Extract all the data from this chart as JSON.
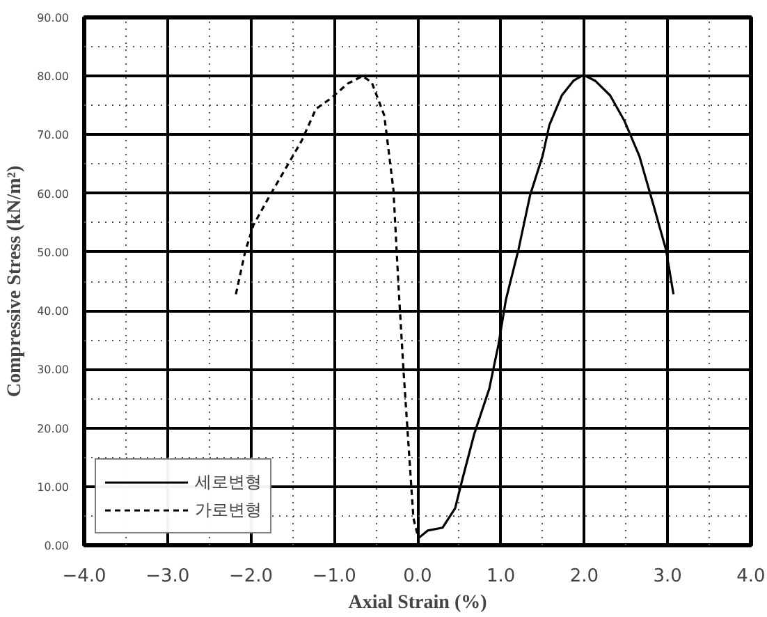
{
  "chart_data": {
    "type": "line",
    "xlabel": "Axial Strain (%)",
    "ylabel": "Compressive Stress (kN/m²)",
    "xlim": [
      -4,
      4
    ],
    "ylim": [
      0,
      90
    ],
    "xticks": [
      {
        "value": -4,
        "label": "−4.0"
      },
      {
        "value": -3,
        "label": "−3.0"
      },
      {
        "value": -2,
        "label": "−2.0"
      },
      {
        "value": -1,
        "label": "−1.0"
      },
      {
        "value": 0,
        "label": "0.0"
      },
      {
        "value": 1,
        "label": "1.0"
      },
      {
        "value": 2,
        "label": "2.0"
      },
      {
        "value": 3,
        "label": "3.0"
      },
      {
        "value": 4,
        "label": "4.0"
      }
    ],
    "yticks": [
      {
        "value": 0,
        "label": "0.00"
      },
      {
        "value": 10,
        "label": "10.00"
      },
      {
        "value": 20,
        "label": "20.00"
      },
      {
        "value": 30,
        "label": "30.00"
      },
      {
        "value": 40,
        "label": "40.00"
      },
      {
        "value": 50,
        "label": "50.00"
      },
      {
        "value": 60,
        "label": "60.00"
      },
      {
        "value": 70,
        "label": "70.00"
      },
      {
        "value": 80,
        "label": "80.00"
      },
      {
        "value": 90,
        "label": "90.00"
      }
    ],
    "grid": true,
    "legend": "bottom left",
    "marker": "none",
    "series": [
      {
        "name": "세로변형",
        "color": "#000000",
        "line_style": "solid",
        "x": [
          0.01,
          0.12,
          0.3,
          0.45,
          0.54,
          0.68,
          0.86,
          0.97,
          1.06,
          1.21,
          1.35,
          1.5,
          1.58,
          1.73,
          1.87,
          1.99,
          2.13,
          2.31,
          2.48,
          2.66,
          2.83,
          2.98,
          3.07
        ],
        "values": [
          1.2,
          2.5,
          3.0,
          6.3,
          11.4,
          19.0,
          26.7,
          34.2,
          41.9,
          50.4,
          59.7,
          66.4,
          71.6,
          76.7,
          79.2,
          80.2,
          79.2,
          76.7,
          72.4,
          66.4,
          58.0,
          50.4,
          42.8
        ]
      },
      {
        "name": "가로변형",
        "color": "#000000",
        "line_style": "dashed",
        "x": [
          -2.18,
          -2.07,
          -1.97,
          -1.77,
          -1.54,
          -1.39,
          -1.22,
          -1.04,
          -0.84,
          -0.66,
          -0.55,
          -0.4,
          -0.29,
          -0.23,
          -0.17,
          -0.11,
          -0.05,
          0.01
        ],
        "values": [
          42.8,
          50.0,
          54.6,
          59.7,
          65.3,
          69.0,
          74.4,
          76.2,
          78.7,
          80.0,
          78.9,
          73.3,
          60.6,
          44.4,
          30.0,
          17.3,
          4.6,
          1.2
        ]
      }
    ]
  }
}
